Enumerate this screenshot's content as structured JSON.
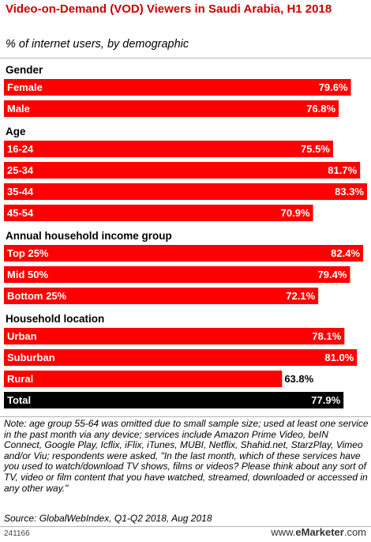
{
  "chart_data": {
    "type": "bar",
    "orientation": "horizontal",
    "title": "Video-on-Demand (VOD) Viewers in Saudi Arabia, H1 2018",
    "subtitle": "% of internet users, by demographic",
    "xlim": [
      0,
      83.3
    ],
    "groups": [
      {
        "name": "Gender",
        "items": [
          {
            "label": "Female",
            "value": 79.6,
            "display": "79.6%"
          },
          {
            "label": "Male",
            "value": 76.8,
            "display": "76.8%"
          }
        ]
      },
      {
        "name": "Age",
        "items": [
          {
            "label": "16-24",
            "value": 75.5,
            "display": "75.5%"
          },
          {
            "label": "25-34",
            "value": 81.7,
            "display": "81.7%"
          },
          {
            "label": "35-44",
            "value": 83.3,
            "display": "83.3%"
          },
          {
            "label": "45-54",
            "value": 70.9,
            "display": "70.9%"
          }
        ]
      },
      {
        "name": "Annual household income group",
        "items": [
          {
            "label": "Top 25%",
            "value": 82.4,
            "display": "82.4%"
          },
          {
            "label": "Mid 50%",
            "value": 79.4,
            "display": "79.4%"
          },
          {
            "label": "Bottom 25%",
            "value": 72.1,
            "display": "72.1%"
          }
        ]
      },
      {
        "name": "Household location",
        "items": [
          {
            "label": "Urban",
            "value": 78.1,
            "display": "78.1%"
          },
          {
            "label": "Suburban",
            "value": 81.0,
            "display": "81.0%"
          },
          {
            "label": "Rural",
            "value": 63.8,
            "display": "63.8%"
          }
        ]
      }
    ],
    "total": {
      "label": "Total",
      "value": 77.9,
      "display": "77.9%"
    },
    "colors": {
      "bar": "#ff0000",
      "total_bar": "#000000",
      "title": "#cc0000"
    }
  },
  "note": "Note: age group 55-64 was omitted due to small sample size; used at least one service in the past month via any device; services include Amazon Prime Video, beIN Connect, Google Play, Icflix, iFlix, iTunes, MUBI, Netflix, Shahid.net, StarzPlay, Vimeo and/or Viu; respondents were asked, \"In the last month, which of these services have you used to watch/download TV shows, films or videos? Please think about any sort of TV, video or film content that you have watched, streamed, downloaded or accessed in any other way.\"",
  "source": "Source: GlobalWebIndex, Q1-Q2 2018, Aug 2018",
  "chart_id": "241166",
  "brand": {
    "prefix": "www.",
    "name": "eMarketer",
    "suffix": ".com"
  }
}
